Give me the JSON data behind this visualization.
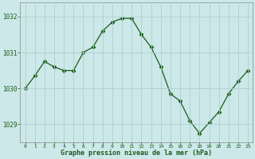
{
  "x": [
    0,
    1,
    2,
    3,
    4,
    5,
    6,
    7,
    8,
    9,
    10,
    11,
    12,
    13,
    14,
    15,
    16,
    17,
    18,
    19,
    20,
    21,
    22,
    23
  ],
  "y": [
    1030.0,
    1030.35,
    1030.75,
    1030.6,
    1030.5,
    1030.5,
    1031.0,
    1031.15,
    1031.6,
    1031.85,
    1031.95,
    1031.95,
    1031.5,
    1031.15,
    1030.6,
    1029.85,
    1029.65,
    1029.1,
    1028.75,
    1029.05,
    1029.35,
    1029.85,
    1030.2,
    1030.5
  ],
  "line_color": "#1a5c1a",
  "marker": "D",
  "marker_size": 2.5,
  "bg_color": "#cce8e8",
  "grid_color": "#b0d0d0",
  "xlabel": "Graphe pression niveau de la mer (hPa)",
  "xlabel_color": "#1a5c1a",
  "tick_color": "#1a5c1a",
  "ylim": [
    1028.5,
    1032.4
  ],
  "yticks": [
    1029,
    1030,
    1031,
    1032
  ],
  "xtick_labels": [
    "0",
    "1",
    "2",
    "3",
    "4",
    "5",
    "6",
    "7",
    "8",
    "9",
    "10",
    "11",
    "12",
    "13",
    "14",
    "15",
    "16",
    "17",
    "18",
    "19",
    "20",
    "21",
    "22",
    "23"
  ],
  "spine_color": "#888888"
}
